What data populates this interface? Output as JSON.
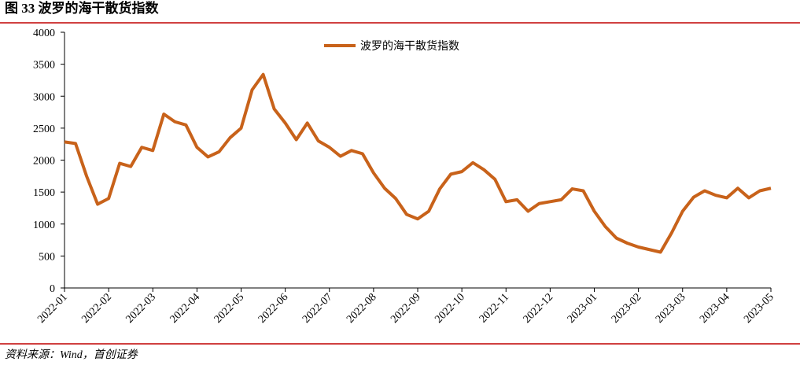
{
  "chart_data": {
    "type": "line",
    "title": "图 33  波罗的海干散货指数",
    "source": "资料来源：Wind，首创证券",
    "categories": [
      "2022-01",
      null,
      null,
      null,
      "2022-02",
      null,
      null,
      null,
      "2022-03",
      null,
      null,
      null,
      "2022-04",
      null,
      null,
      null,
      "2022-05",
      null,
      null,
      null,
      "2022-06",
      null,
      null,
      null,
      "2022-07",
      null,
      null,
      null,
      "2022-08",
      null,
      null,
      null,
      "2022-09",
      null,
      null,
      null,
      "2022-10",
      null,
      null,
      null,
      "2022-11",
      null,
      null,
      null,
      "2022-12",
      null,
      null,
      null,
      "2023-01",
      null,
      null,
      null,
      "2023-02",
      null,
      null,
      null,
      "2023-03",
      null,
      null,
      null,
      "2023-04",
      null,
      null,
      null,
      "2023-05"
    ],
    "series": [
      {
        "name": "波罗的海干散货指数",
        "color": "#c8621a",
        "values": [
          2285,
          2260,
          1750,
          1310,
          1400,
          1950,
          1900,
          2200,
          2150,
          2720,
          2600,
          2550,
          2200,
          2050,
          2130,
          2350,
          2500,
          3100,
          3340,
          2800,
          2580,
          2320,
          2580,
          2300,
          2200,
          2060,
          2150,
          2100,
          1800,
          1560,
          1400,
          1150,
          1080,
          1200,
          1550,
          1780,
          1820,
          1960,
          1850,
          1700,
          1350,
          1380,
          1200,
          1320,
          1350,
          1380,
          1550,
          1520,
          1200,
          960,
          780,
          700,
          640,
          600,
          560,
          860,
          1200,
          1420,
          1520,
          1450,
          1410,
          1560,
          1410,
          1520,
          1560
        ]
      }
    ],
    "ylim": [
      0,
      4000
    ],
    "yticks": [
      0,
      500,
      1000,
      1500,
      2000,
      2500,
      3000,
      3500,
      4000
    ],
    "grid": false
  }
}
